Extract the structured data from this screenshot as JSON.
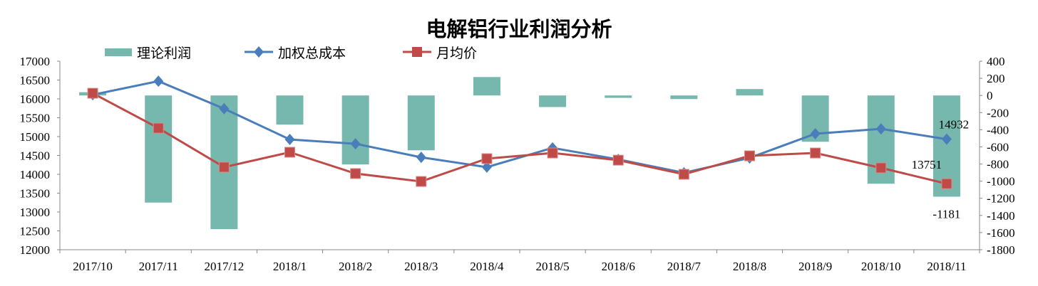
{
  "chart_data": {
    "type": "bar+line",
    "title": "电解铝行业利润分析",
    "categories": [
      "2017/10",
      "2017/11",
      "2017/12",
      "2018/1",
      "2018/2",
      "2018/3",
      "2018/4",
      "2018/5",
      "2018/6",
      "2018/7",
      "2018/8",
      "2018/9",
      "2018/10",
      "2018/11"
    ],
    "left_axis": {
      "ylim": [
        12000,
        17000
      ],
      "ticks": [
        "12000",
        "12500",
        "13000",
        "13500",
        "14000",
        "14500",
        "15000",
        "15500",
        "16000",
        "16500",
        "17000"
      ]
    },
    "right_axis": {
      "ylim": [
        -1800,
        400
      ],
      "ticks": [
        "-1800",
        "-1600",
        "-1400",
        "-1200",
        "-1000",
        "-800",
        "-600",
        "-400",
        "-200",
        "0",
        "200",
        "400"
      ]
    },
    "series": [
      {
        "name": "理论利润",
        "type": "bar",
        "axis": "right",
        "color": "#77B8AE",
        "values": [
          38,
          -1250,
          -1560,
          -340,
          -805,
          -640,
          215,
          -135,
          -28,
          -42,
          75,
          -540,
          -1030,
          -1181
        ]
      },
      {
        "name": "加权总成本",
        "type": "line",
        "axis": "left",
        "color": "#4A7EBB",
        "marker": "diamond",
        "values": [
          16110,
          16470,
          15740,
          14925,
          14810,
          14450,
          14190,
          14700,
          14395,
          14040,
          14435,
          15075,
          15205,
          14932
        ]
      },
      {
        "name": "月均价",
        "type": "line",
        "axis": "left",
        "color": "#BE4B48",
        "marker": "square",
        "values": [
          16150,
          15225,
          14190,
          14585,
          14020,
          13810,
          14415,
          14565,
          14375,
          14000,
          14490,
          14565,
          14170,
          13751
        ]
      }
    ],
    "data_labels": [
      {
        "series": "加权总成本",
        "category": "2018/11",
        "text": "14932"
      },
      {
        "series": "月均价",
        "category": "2018/11",
        "text": "13751"
      },
      {
        "series": "理论利润",
        "category": "2018/11",
        "text": "-1181"
      }
    ],
    "legend": "top",
    "grid": false
  }
}
